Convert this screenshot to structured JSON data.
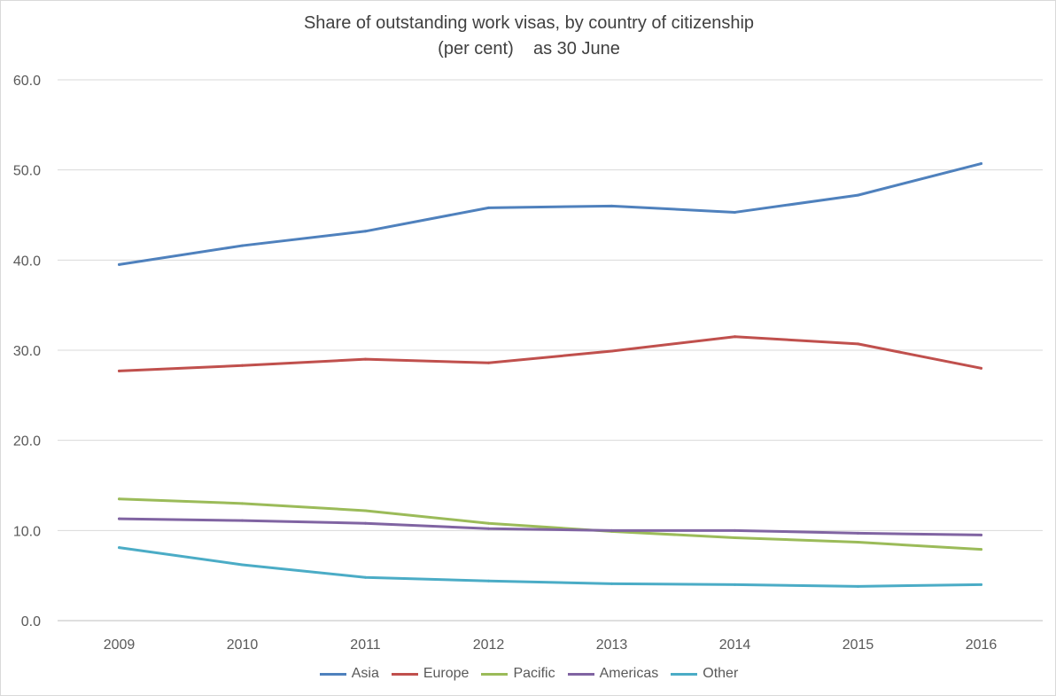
{
  "chart_data": {
    "type": "line",
    "title": [
      "Share of outstanding work visas, by country of citizenship",
      "(per cent)    as 30 June"
    ],
    "xlabel": "",
    "ylabel": "",
    "categories": [
      "2009",
      "2010",
      "2011",
      "2012",
      "2013",
      "2014",
      "2015",
      "2016"
    ],
    "ylim": [
      0,
      60
    ],
    "yticks": [
      "0.0",
      "10.0",
      "20.0",
      "30.0",
      "40.0",
      "50.0",
      "60.0"
    ],
    "grid": true,
    "legend_position": "bottom",
    "series": [
      {
        "name": "Asia",
        "color": "#4f81bd",
        "values": [
          39.5,
          41.6,
          43.2,
          45.8,
          46.0,
          45.3,
          47.2,
          50.7
        ]
      },
      {
        "name": "Europe",
        "color": "#c0504d",
        "values": [
          27.7,
          28.3,
          29.0,
          28.6,
          29.9,
          31.5,
          30.7,
          28.0
        ]
      },
      {
        "name": "Pacific",
        "color": "#9bbb59",
        "values": [
          13.5,
          13.0,
          12.2,
          10.8,
          9.9,
          9.2,
          8.7,
          7.9
        ]
      },
      {
        "name": "Americas",
        "color": "#8064a2",
        "values": [
          11.3,
          11.1,
          10.8,
          10.2,
          10.0,
          10.0,
          9.7,
          9.5
        ]
      },
      {
        "name": "Other",
        "color": "#4bacc6",
        "values": [
          8.1,
          6.2,
          4.8,
          4.4,
          4.1,
          4.0,
          3.8,
          4.0
        ]
      }
    ]
  }
}
